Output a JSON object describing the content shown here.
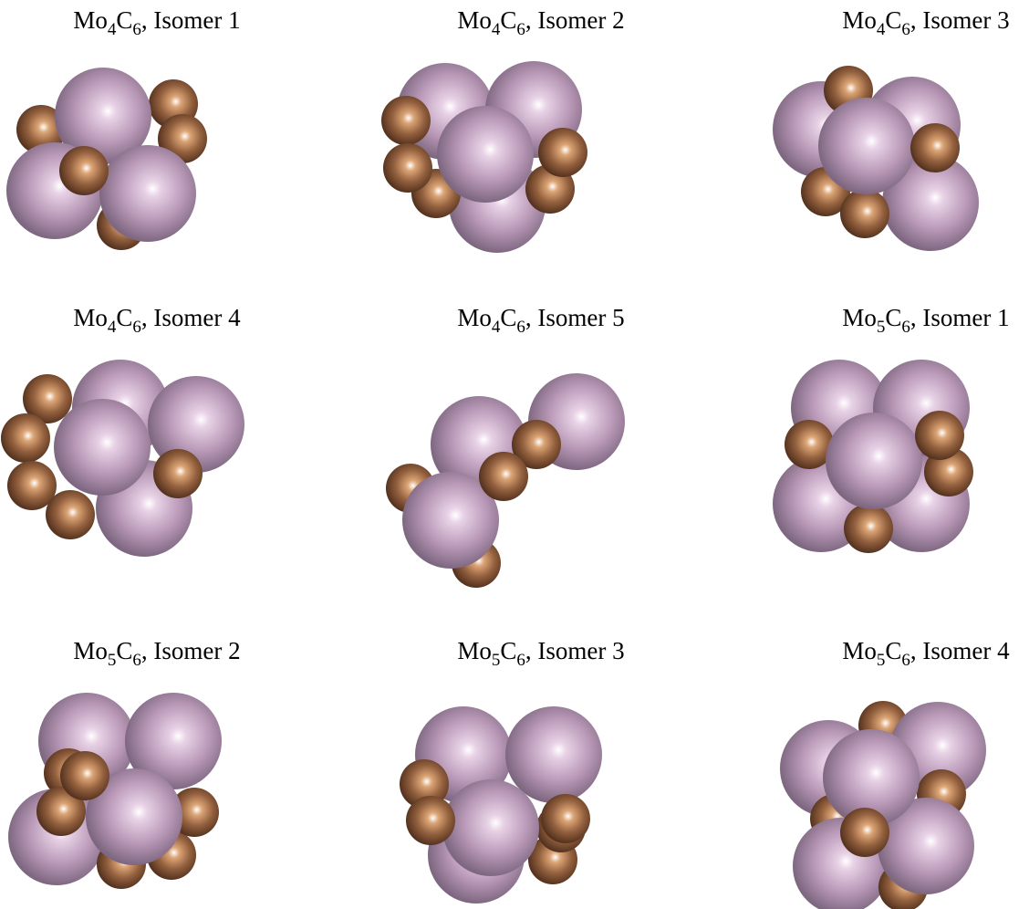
{
  "panels": [
    {
      "label": [
        "Mo",
        "4",
        "C",
        "6",
        ", Isomer 1"
      ]
    },
    {
      "label": [
        "Mo",
        "4",
        "C",
        "6",
        ", Isomer 2"
      ]
    },
    {
      "label": [
        "Mo",
        "4",
        "C",
        "6",
        ", Isomer 3"
      ]
    },
    {
      "label": [
        "Mo",
        "4",
        "C",
        "6",
        ", Isomer 4"
      ]
    },
    {
      "label": [
        "Mo",
        "4",
        "C",
        "6",
        ", Isomer 5"
      ]
    },
    {
      "label": [
        "Mo",
        "5",
        "C",
        "6",
        ", Isomer 1"
      ]
    },
    {
      "label": [
        "Mo",
        "5",
        "C",
        "6",
        ", Isomer 2"
      ]
    },
    {
      "label": [
        "Mo",
        "5",
        "C",
        "6",
        ", Isomer 3"
      ]
    },
    {
      "label": [
        "Mo",
        "5",
        "C",
        "6",
        ", Isomer 4"
      ]
    }
  ]
}
